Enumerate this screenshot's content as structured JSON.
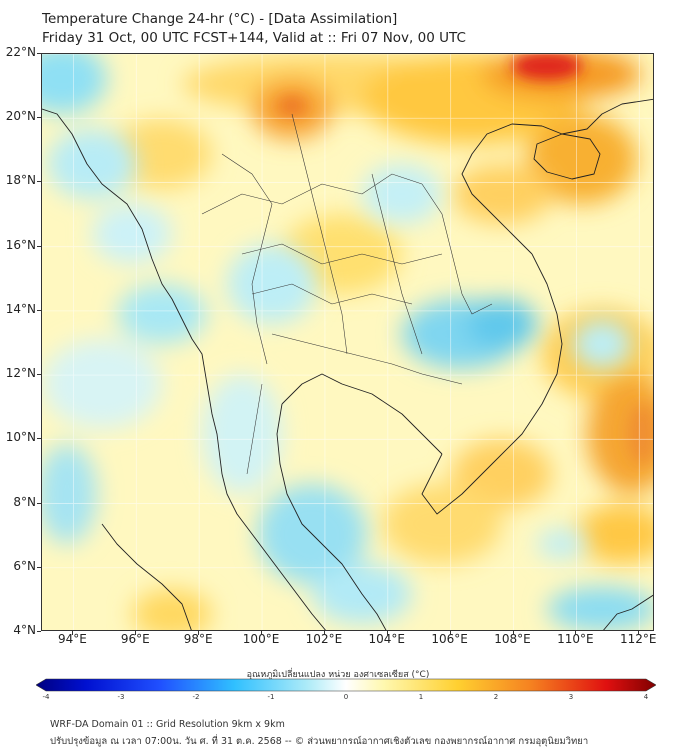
{
  "header": {
    "title_line1": "Temperature Change 24-hr (°C) - [Data Assimilation]",
    "title_line2": "Friday 31 Oct, 00 UTC FCST+144, Valid at :: Fri 07 Nov, 00 UTC"
  },
  "map": {
    "lat_range": [
      4,
      22
    ],
    "lon_range": [
      93,
      112.5
    ],
    "lat_labels": [
      "22°N",
      "20°N",
      "18°N",
      "16°N",
      "14°N",
      "12°N",
      "10°N",
      "8°N",
      "6°N",
      "4°N"
    ],
    "lat_values": [
      22,
      20,
      18,
      16,
      14,
      12,
      10,
      8,
      6,
      4
    ],
    "lon_labels": [
      "94°E",
      "96°E",
      "98°E",
      "100°E",
      "102°E",
      "104°E",
      "106°E",
      "108°E",
      "110°E",
      "112°E"
    ],
    "lon_values": [
      94,
      96,
      98,
      100,
      102,
      104,
      106,
      108,
      110,
      112
    ],
    "colors": {
      "background_field": "#fff8c0",
      "warm": "#f5a020",
      "hot": "#e02010",
      "cool": "#7fd8f0",
      "border": "#222222"
    }
  },
  "colorbar": {
    "title": "อุณหภูมิเปลี่ยนแปลง หน่วย องศาเซลเซียส (°C)",
    "tick_labels": [
      "-4",
      "-3",
      "-2",
      "-1",
      "0",
      "1",
      "2",
      "3",
      "4"
    ],
    "tick_values": [
      -4,
      -3,
      -2,
      -1,
      0,
      1,
      2,
      3,
      4
    ]
  },
  "footer": {
    "line1": "WRF-DA Domain 01 :: Grid Resolution 9km x 9km",
    "line2": "ปรับปรุงข้อมูล ณ เวลา 07:00น. วัน ศ. ที่ 31 ต.ค. 2568 -- © ส่วนพยากรณ์อากาศเชิงตัวเลข กองพยากรณ์อากาศ กรมอุตุนิยมวิทยา"
  }
}
